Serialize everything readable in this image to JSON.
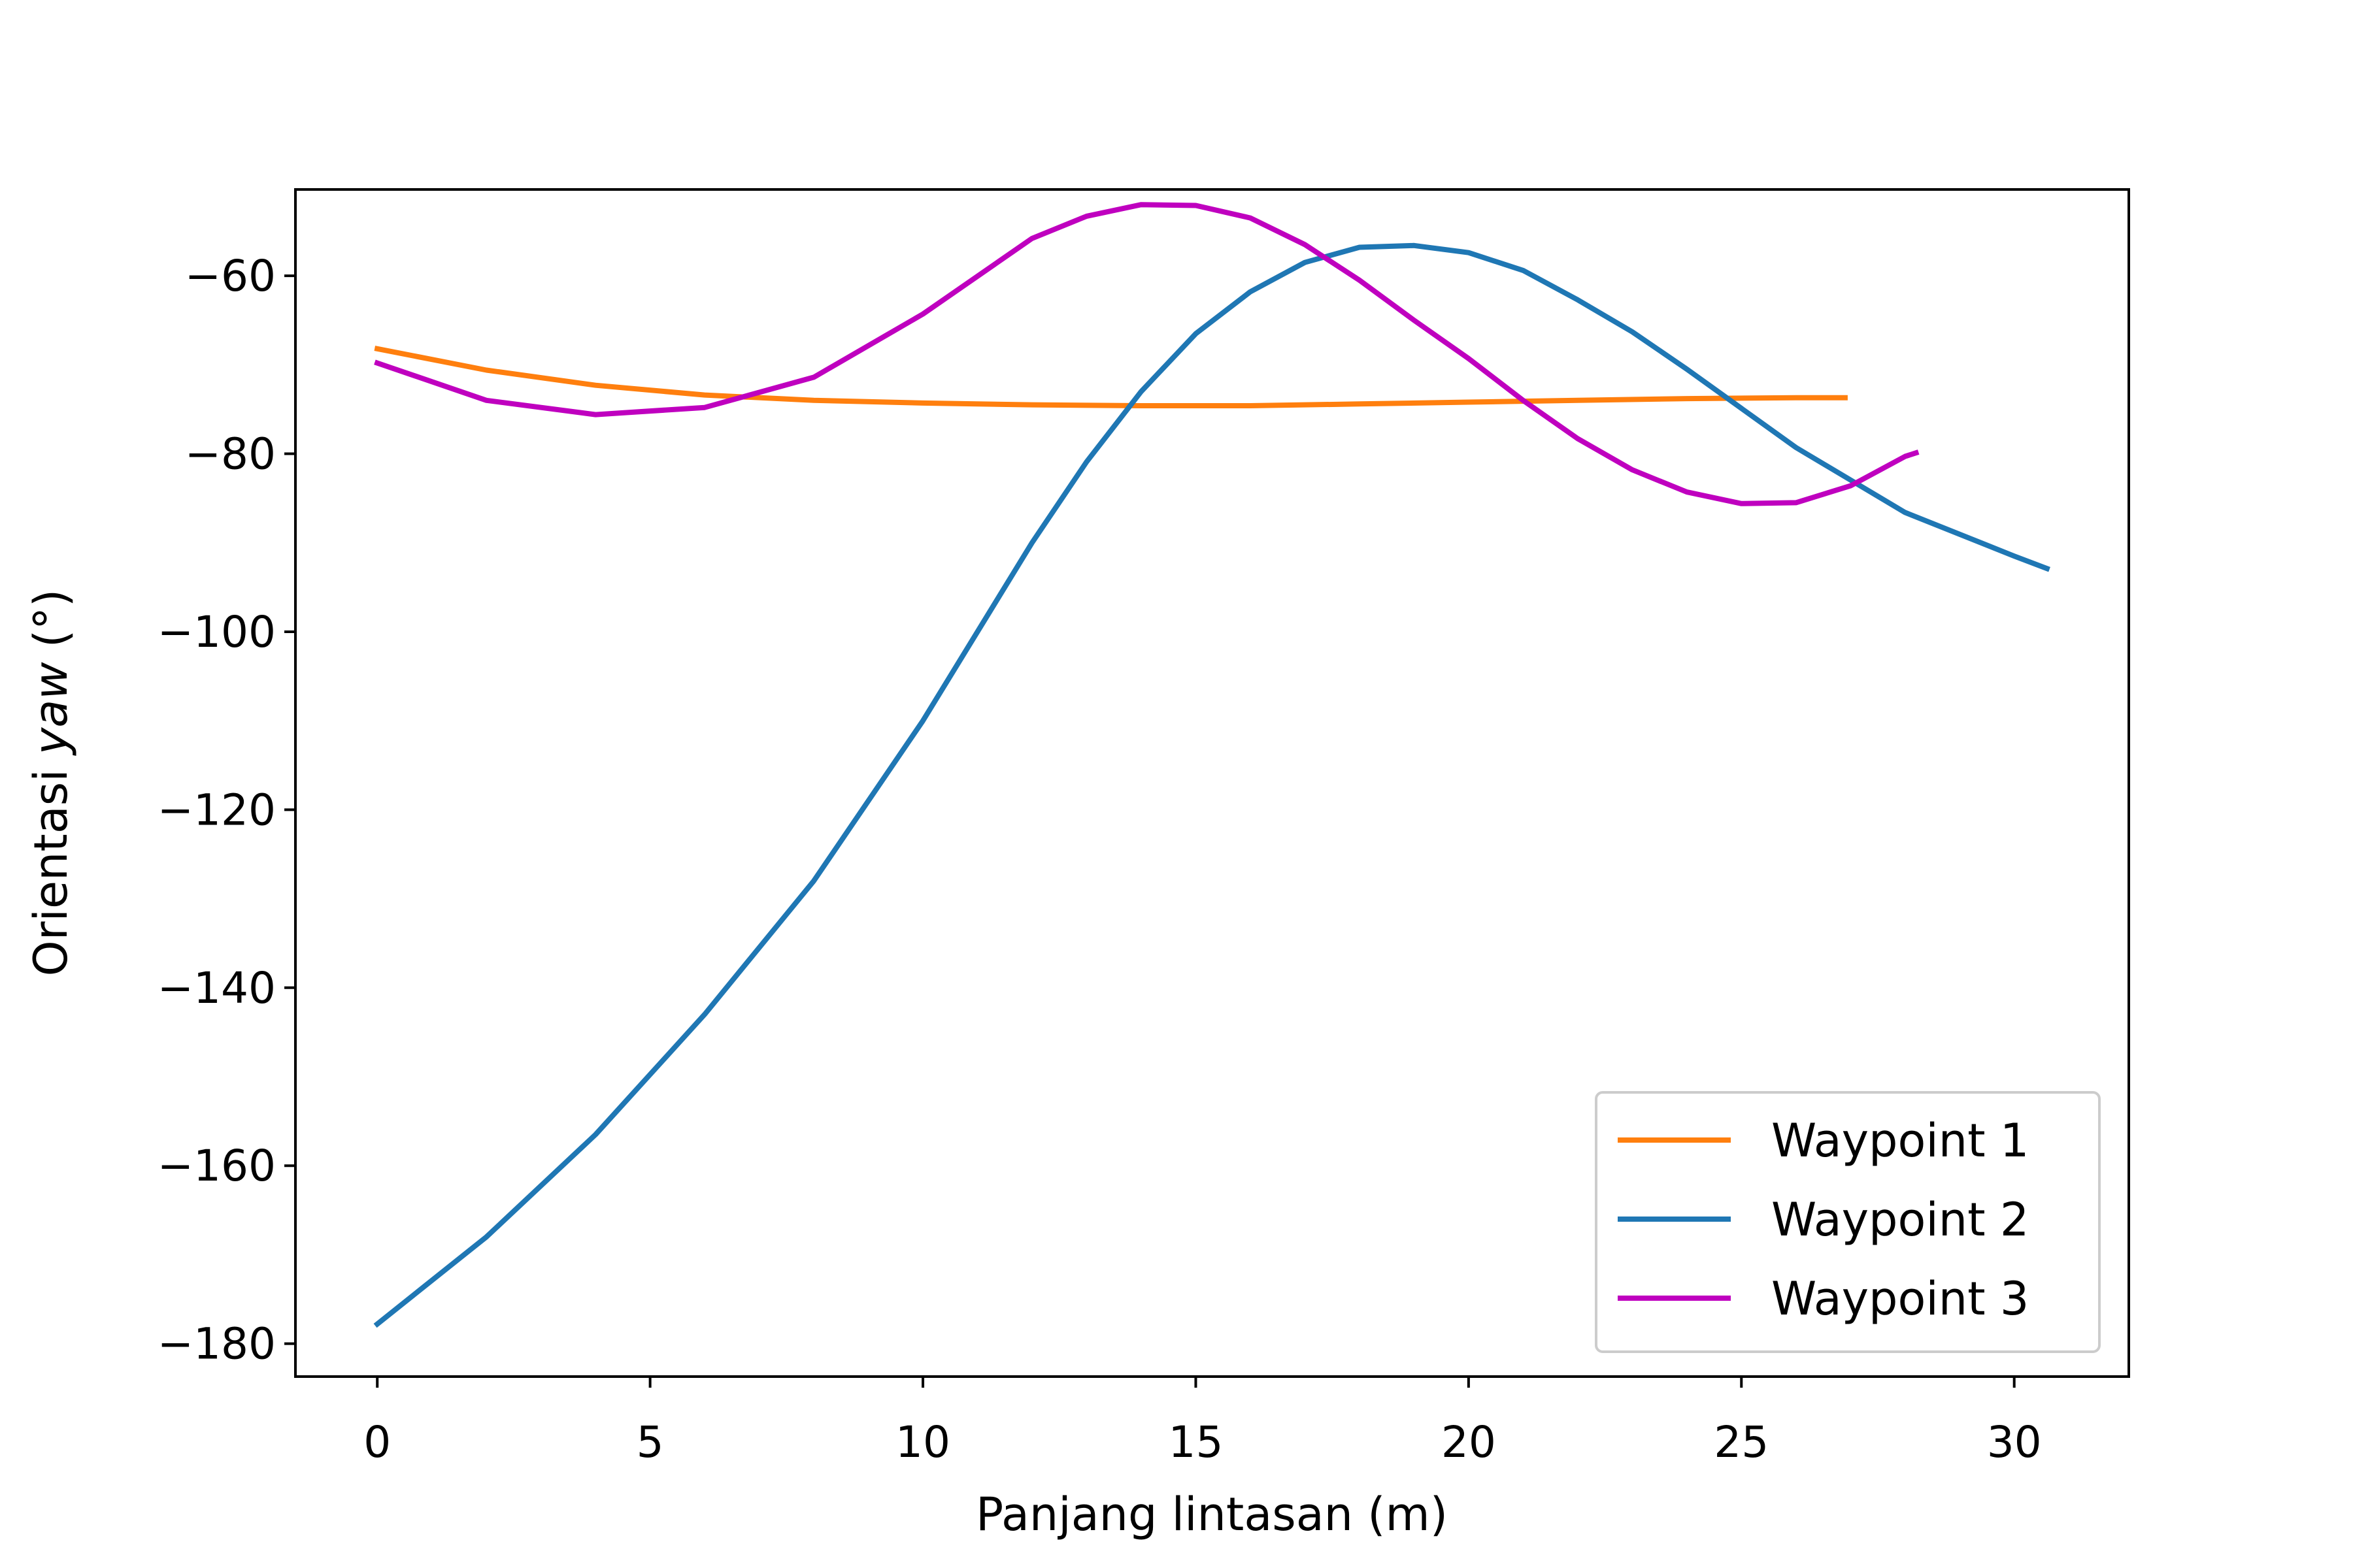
{
  "chart_data": {
    "type": "line",
    "title": "",
    "xlabel": "Panjang lintasan (m)",
    "ylabel_prefix": "Orientasi ",
    "ylabel_emph": "yaw",
    "ylabel_suffix": " (°)",
    "xlim": [
      -1.5,
      32.1
    ],
    "ylim": [
      -183.7,
      -50.3
    ],
    "xticks": [
      0,
      5,
      10,
      15,
      20,
      25,
      30
    ],
    "yticks": [
      -60,
      -80,
      -100,
      -120,
      -140,
      -160,
      -180
    ],
    "xtick_labels": [
      "0",
      "5",
      "10",
      "15",
      "20",
      "25",
      "30"
    ],
    "ytick_labels": [
      "−60",
      "−80",
      "−100",
      "−120",
      "−140",
      "−160",
      "−180"
    ],
    "grid": false,
    "legend_position": "lower-right",
    "series": [
      {
        "name": "Waypoint 1",
        "color": "#ff7f0e",
        "x": [
          0,
          2,
          4,
          6,
          8,
          10,
          12,
          14,
          16,
          18,
          20,
          22,
          24,
          26,
          26.9
        ],
        "y": [
          -68.2,
          -70.6,
          -72.3,
          -73.4,
          -74.0,
          -74.3,
          -74.5,
          -74.6,
          -74.6,
          -74.4,
          -74.2,
          -74.0,
          -73.8,
          -73.7,
          -73.7
        ]
      },
      {
        "name": "Waypoint 2",
        "color": "#1f77b4",
        "x": [
          0,
          2,
          4,
          6,
          8,
          10,
          12,
          13,
          14,
          15,
          16,
          17,
          18,
          19,
          20,
          21,
          22,
          23,
          24,
          26,
          28,
          30,
          30.6
        ],
        "y": [
          -177.8,
          -168.0,
          -156.5,
          -143.0,
          -128.0,
          -110.0,
          -90.0,
          -80.9,
          -73.0,
          -66.5,
          -61.8,
          -58.5,
          -56.8,
          -56.6,
          -57.4,
          -59.4,
          -62.7,
          -66.3,
          -70.5,
          -79.3,
          -86.6,
          -91.5,
          -92.9
        ]
      },
      {
        "name": "Waypoint 3",
        "color": "#bf00bf",
        "x": [
          0,
          2,
          4,
          6,
          8,
          10,
          12,
          13,
          14,
          15,
          16,
          17,
          18,
          19,
          20,
          21,
          22,
          23,
          24,
          25,
          26,
          27,
          28,
          28.2
        ],
        "y": [
          -69.8,
          -74.0,
          -75.6,
          -74.8,
          -71.4,
          -64.3,
          -55.8,
          -53.3,
          -52.0,
          -52.1,
          -53.5,
          -56.5,
          -60.5,
          -65.0,
          -69.3,
          -74.0,
          -78.3,
          -81.8,
          -84.3,
          -85.6,
          -85.5,
          -83.6,
          -80.3,
          -79.9
        ]
      }
    ]
  }
}
